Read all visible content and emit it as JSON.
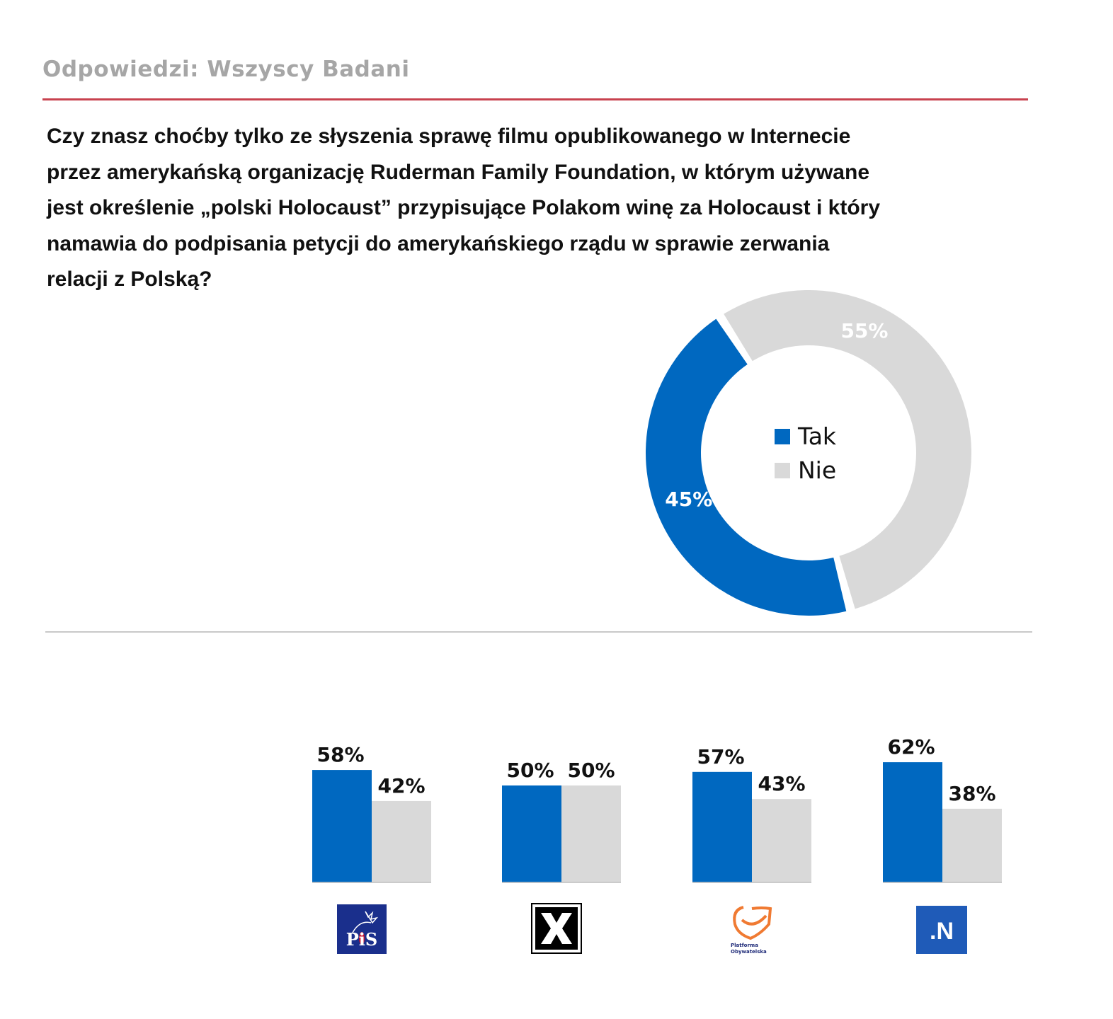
{
  "header": {
    "subtitle": "Odpowiedzi: Wszyscy Badani",
    "question_lines": [
      "Czy znasz choćby tylko ze słyszenia sprawę filmu opublikowanego  w Internecie",
      "przez amerykańską  organizację  Ruderman  Family Foundation,  w którym  używane",
      "jest określenie „polski Holocaust”  przypisujące  Polakom  winę za Holocaust  i który",
      "namawia  do podpisania  petycji do amerykańskiego  rządu  w sprawie zerwania",
      "relacji z Polską?"
    ]
  },
  "colors": {
    "tak": "#0068c0",
    "nie": "#d9d9d9",
    "accent_rule": "#c8424f"
  },
  "logos": {
    "pis": "PiS",
    "kukiz": "K",
    "po_line1": "Platforma",
    "po_line2": "Obywatelska",
    "n": ".N"
  },
  "chart_data": [
    {
      "type": "pie",
      "variant": "donut",
      "title": "Wszyscy Badani",
      "categories": [
        "Tak",
        "Nie"
      ],
      "values": [
        45,
        55
      ],
      "labels": [
        "45%",
        "55%"
      ],
      "legend": [
        "Tak",
        "Nie"
      ],
      "legend_position": "center"
    },
    {
      "type": "bar",
      "categories": [
        "PiS",
        "Kukiz'15",
        "Platforma Obywatelska",
        "Nowoczesna"
      ],
      "series": [
        {
          "name": "Tak",
          "values": [
            58,
            50,
            57,
            62
          ],
          "labels": [
            "58%",
            "50%",
            "57%",
            "62%"
          ]
        },
        {
          "name": "Nie",
          "values": [
            42,
            50,
            43,
            38
          ],
          "labels": [
            "42%",
            "50%",
            "43%",
            "38%"
          ]
        }
      ],
      "xlabel": "",
      "ylabel": "",
      "ylim": [
        0,
        100
      ],
      "grid": false
    }
  ]
}
